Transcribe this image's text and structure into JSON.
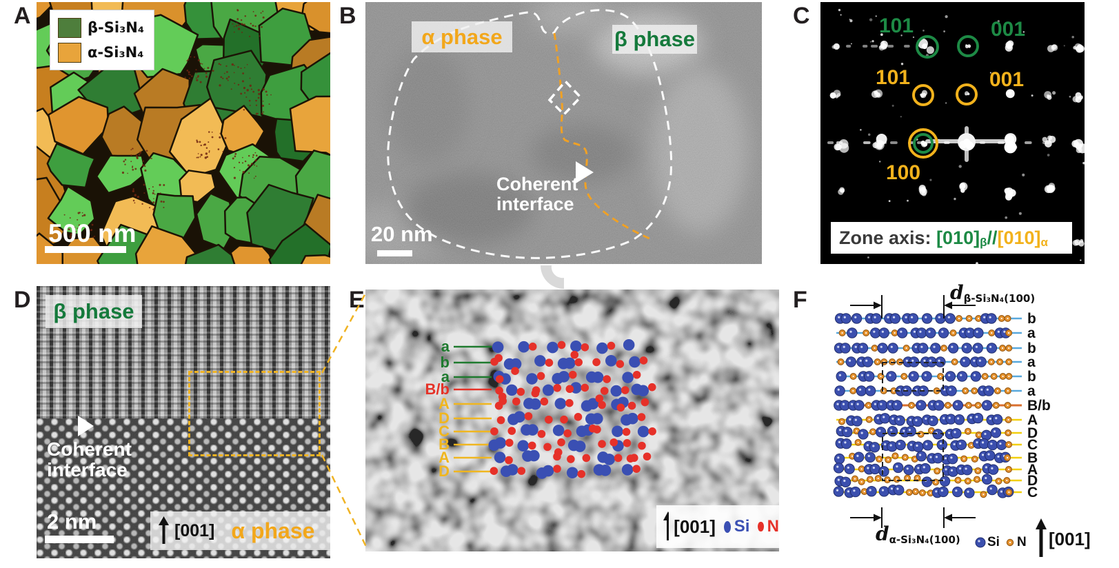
{
  "panels": {
    "A": {
      "letter": "A",
      "legend": [
        {
          "label": "β-Si₃N₄",
          "color": "#4e7e3c"
        },
        {
          "label": "α-Si₃N₄",
          "color": "#e8a43b"
        }
      ],
      "scale_bar_label": "500 nm"
    },
    "B": {
      "letter": "B",
      "alpha_phase_label": "α phase",
      "beta_phase_label": "β phase",
      "interface_line1": "Coherent",
      "interface_line2": "interface",
      "scale_bar_label": "20 nm"
    },
    "C": {
      "letter": "C",
      "beta_spots": [
        {
          "label": "101"
        },
        {
          "label": "001"
        }
      ],
      "alpha_spots": [
        {
          "label": "101"
        },
        {
          "label": "001"
        },
        {
          "label": "100"
        }
      ],
      "zone_axis": {
        "prefix": "Zone axis: ",
        "beta_index": "[010]",
        "beta_sub": "β",
        "separator": "//",
        "alpha_index": "[010]",
        "alpha_sub": "α"
      }
    },
    "D": {
      "letter": "D",
      "beta_phase_label": "β phase",
      "interface_line1": "Coherent",
      "interface_line2": "interface",
      "scale_bar_label": "2 nm",
      "direction_label": "[001]",
      "alpha_phase_label": "α phase"
    },
    "E": {
      "letter": "E",
      "stacking_labels": [
        {
          "label": "a",
          "color": "#1e7a2e"
        },
        {
          "label": "b",
          "color": "#1e7a2e"
        },
        {
          "label": "a",
          "color": "#1e7a2e"
        },
        {
          "label": "B/b",
          "color": "#e53228"
        },
        {
          "label": "A",
          "color": "#f0b61f"
        },
        {
          "label": "D",
          "color": "#f0b61f"
        },
        {
          "label": "C",
          "color": "#f0b61f"
        },
        {
          "label": "B",
          "color": "#f0b61f"
        },
        {
          "label": "A",
          "color": "#f0b61f"
        },
        {
          "label": "D",
          "color": "#f0b61f"
        }
      ],
      "direction_label": "[001]",
      "si_label": "Si",
      "n_label": "N"
    },
    "F": {
      "letter": "F",
      "d_beta": {
        "symbol": "d",
        "subscript": "β-Si₃N₄(100)"
      },
      "d_alpha": {
        "symbol": "d",
        "subscript": "α-Si₃N₄(100)"
      },
      "rows": [
        {
          "label": "b",
          "type": "beta"
        },
        {
          "label": "a",
          "type": "beta"
        },
        {
          "label": "b",
          "type": "beta"
        },
        {
          "label": "a",
          "type": "beta"
        },
        {
          "label": "b",
          "type": "beta"
        },
        {
          "label": "a",
          "type": "beta"
        },
        {
          "label": "B/b",
          "type": "interface"
        },
        {
          "label": "A",
          "type": "alpha"
        },
        {
          "label": "D",
          "type": "alpha"
        },
        {
          "label": "C",
          "type": "alpha"
        },
        {
          "label": "B",
          "type": "alpha"
        },
        {
          "label": "A",
          "type": "alpha"
        },
        {
          "label": "D",
          "type": "alpha"
        },
        {
          "label": "C",
          "type": "alpha"
        }
      ],
      "si_label": "Si",
      "n_label": "N",
      "direction_label": "[001]"
    }
  },
  "colors": {
    "beta_green": "#157a3c",
    "alpha_amber": "#f2a71b",
    "c_green": "#1d8a45",
    "c_yellow": "#f2b21c",
    "si_blue": "#3a4fb3",
    "n_red": "#e63129",
    "n_orange": "#e6932f",
    "f_beta_line": "#58a8dc",
    "f_interface_line": "#d96f2e",
    "f_alpha_line": "#f2cf0e"
  }
}
